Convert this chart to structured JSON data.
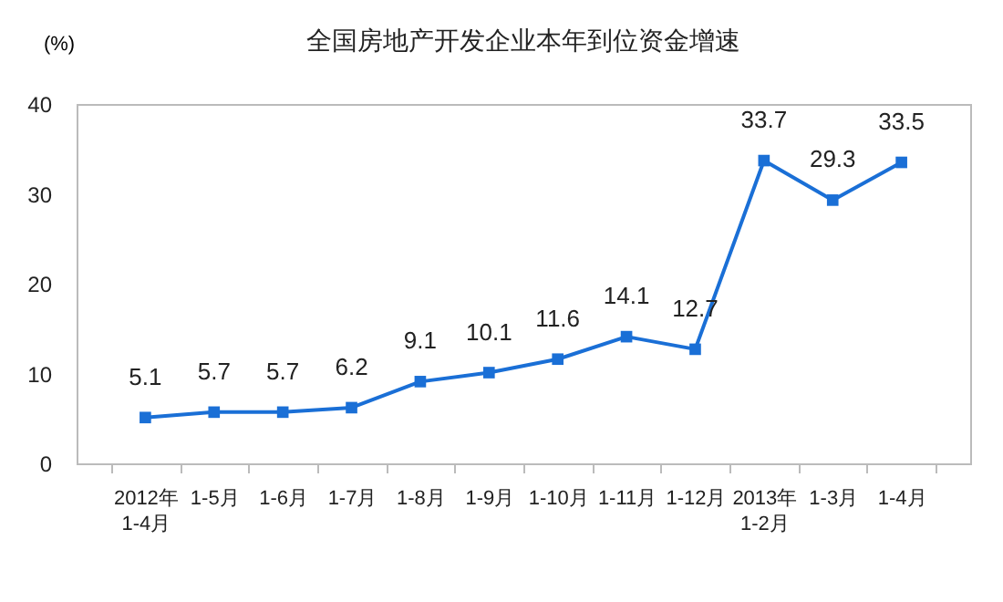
{
  "chart_data": {
    "type": "line",
    "title": "全国房地产开发企业本年到位资金增速",
    "ylabel": "(%)",
    "categories": [
      "2012年\n1-4月",
      "1-5月",
      "1-6月",
      "1-7月",
      "1-8月",
      "1-9月",
      "1-10月",
      "1-11月",
      "1-12月",
      "2013年\n1-2月",
      "1-3月",
      "1-4月"
    ],
    "series": [
      {
        "color": "#1a6fd6",
        "values": [
          5.1,
          5.7,
          5.7,
          6.2,
          9.1,
          10.1,
          11.6,
          14.1,
          12.7,
          33.7,
          29.3,
          33.5
        ]
      }
    ],
    "ylim": [
      0,
      40
    ],
    "yticks": [
      0,
      10,
      20,
      30,
      40
    ],
    "grid": false,
    "marker": "square",
    "line_style": "solid",
    "data_labels": true
  }
}
